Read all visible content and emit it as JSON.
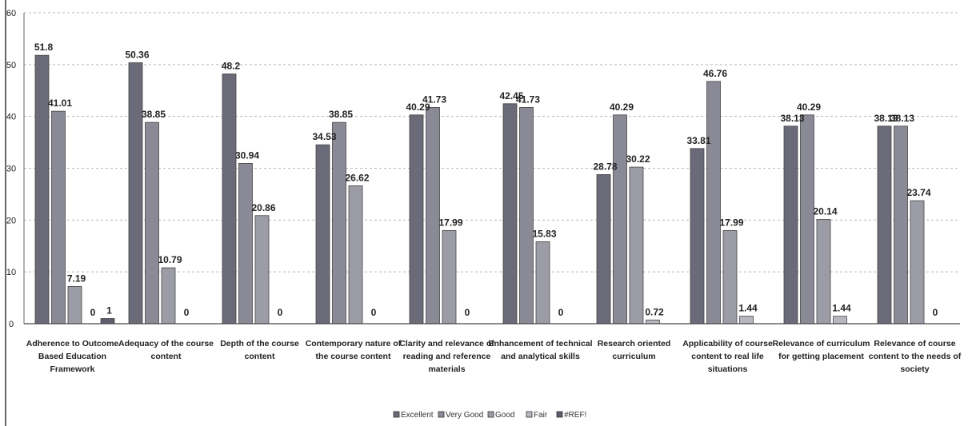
{
  "chart_data": {
    "type": "bar",
    "title": "",
    "xlabel": "",
    "ylabel": "",
    "ylim": [
      0,
      60
    ],
    "yticks": [
      0,
      10,
      20,
      30,
      40,
      50,
      60
    ],
    "grid": "horizontal-dashed",
    "legend_position": "bottom",
    "categories": [
      "Adherence to Outcome Based Education Framework",
      "Adequacy of the course content",
      "Depth of the course content",
      "Contemporary nature of the course content",
      "Clarity and relevance of reading and reference materials",
      "Enhancement of technical and analytical skills",
      "Research oriented curriculum",
      "Applicability of course content to real life situations",
      "Relevance of curriculum for getting placement",
      "Relevance of course content to the needs of society"
    ],
    "category_lines": [
      [
        "Adherence to Outcome",
        "Based Education",
        "Framework"
      ],
      [
        "Adequacy of the course",
        "content"
      ],
      [
        "Depth of the course",
        "content"
      ],
      [
        "Contemporary nature of",
        "the course content"
      ],
      [
        "Clarity and relevance of",
        "reading and reference",
        "materials"
      ],
      [
        "Enhancement of technical",
        "and analytical skills"
      ],
      [
        "Research oriented",
        "curriculum"
      ],
      [
        "Applicability of course",
        "content to real life",
        "situations"
      ],
      [
        "Relevance of curriculum",
        "for getting placement"
      ],
      [
        "Relevance of course",
        "content to the needs of",
        "society"
      ]
    ],
    "series": [
      {
        "name": "Excellent",
        "color": "#6a6a78",
        "values": [
          51.8,
          50.36,
          48.2,
          34.53,
          40.29,
          42.45,
          28.78,
          33.81,
          38.13,
          38.13
        ],
        "labels": [
          "51.8",
          "50.36",
          "48.2",
          "34.53",
          "40.29",
          "42.45",
          "28.78",
          "33.81",
          "38.13",
          "38.13"
        ]
      },
      {
        "name": "Very Good",
        "color": "#8a8a96",
        "values": [
          41.01,
          38.85,
          30.94,
          38.85,
          41.73,
          41.73,
          40.29,
          46.76,
          40.29,
          38.13
        ],
        "labels": [
          "41.01",
          "38.85",
          "30.94",
          "38.85",
          "41.73",
          "41.73",
          "40.29",
          "46.76",
          "40.29",
          "38.13"
        ]
      },
      {
        "name": "Good",
        "color": "#9c9ca6",
        "values": [
          7.19,
          10.79,
          20.86,
          26.62,
          17.99,
          15.83,
          30.22,
          17.99,
          20.14,
          23.74
        ],
        "labels": [
          "7.19",
          "10.79",
          "20.86",
          "26.62",
          "17.99",
          "15.83",
          "30.22",
          "17.99",
          "20.14",
          "23.74"
        ]
      },
      {
        "name": "Fair",
        "color": "#b6b6be",
        "values": [
          0,
          0,
          0,
          0,
          0,
          0,
          0.72,
          1.44,
          1.44,
          0
        ],
        "labels": [
          "0",
          "0",
          "0",
          "0",
          "0",
          "0",
          "0.72",
          "1.44",
          "1.44",
          "0"
        ]
      },
      {
        "name": "#REF!",
        "color": "#5e5e6c",
        "values": [
          1,
          null,
          null,
          null,
          null,
          null,
          null,
          null,
          null,
          null
        ],
        "labels": [
          "1",
          null,
          null,
          null,
          null,
          null,
          null,
          null,
          null,
          null
        ]
      }
    ],
    "legend_entries": [
      "Excellent",
      "Very Good",
      "Good",
      "Fair",
      "#REF!"
    ]
  }
}
